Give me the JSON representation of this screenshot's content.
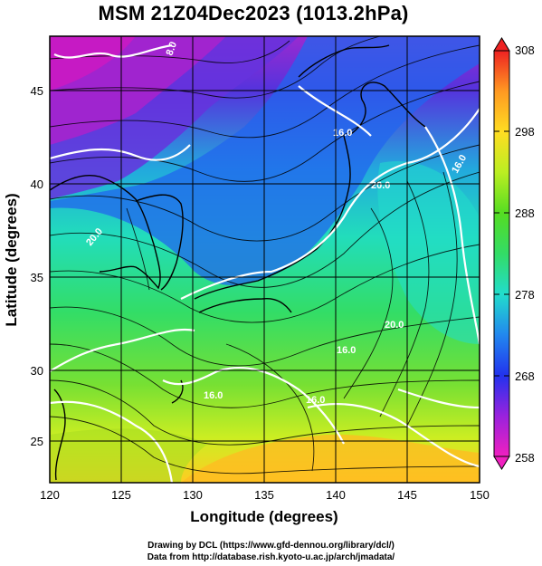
{
  "title": "MSM 21Z04Dec2023 (1013.2hPa)",
  "axes": {
    "xlabel": "Longitude (degrees)",
    "ylabel": "Latitude  (degrees)",
    "x_ticks": [
      "120",
      "125",
      "130",
      "135",
      "140",
      "145",
      "150"
    ],
    "y_ticks": [
      "25",
      "30",
      "35",
      "40",
      "45"
    ]
  },
  "colorbar": {
    "labels": [
      "308",
      "298",
      "288",
      "278",
      "268",
      "258"
    ],
    "range": [
      258,
      308
    ]
  },
  "contour_labels": [
    "16.0",
    "16.0",
    "20.0",
    "20.0",
    "16.0",
    "16.0",
    "20.0",
    "16.0",
    "8.0"
  ],
  "footer": {
    "line1": "Drawing by DCL (https://www.gfd-dennou.org/library/dcl/)",
    "line2": "Data from http://database.rish.kyoto-u.ac.jp/arch/jmadata/"
  },
  "colors": {
    "magenta": "#c000c0",
    "purple": "#6a2ad8",
    "blue": "#2244ee",
    "cyan": "#22ddcc",
    "green": "#44dd33",
    "yellow": "#ddee22",
    "orange": "#ffa020",
    "red": "#ee2222"
  }
}
